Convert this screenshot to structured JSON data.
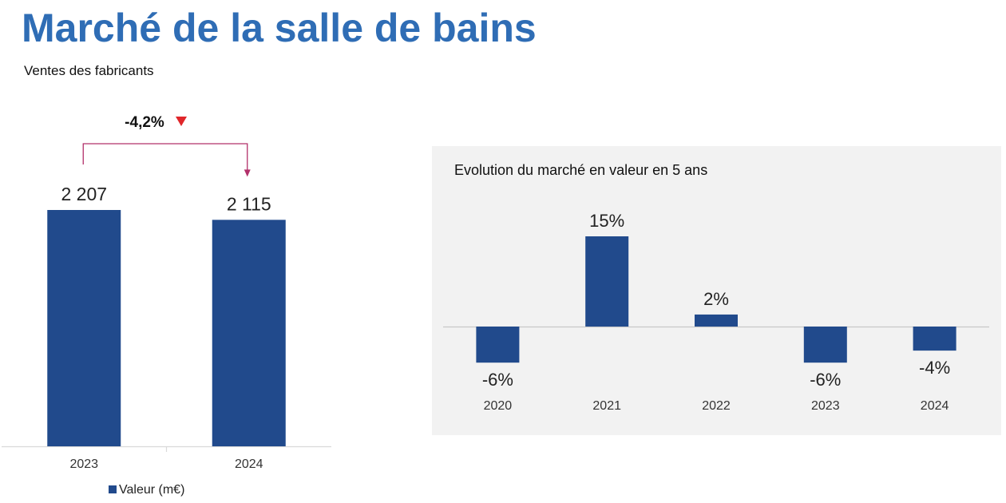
{
  "title": "Marché de la salle de bains",
  "subtitle": "Ventes des fabricants",
  "colors": {
    "title": "#2f6db5",
    "bar": "#214a8c",
    "arrow": "#b2306a",
    "down_marker": "#e0262a",
    "panel_bg": "#f2f2f2"
  },
  "chart_data": [
    {
      "type": "bar",
      "categories": [
        "2023",
        "2024"
      ],
      "series": [
        {
          "name": "Valeur (m€)",
          "values": [
            2207,
            2115
          ]
        }
      ],
      "data_labels": [
        "2 207",
        "2 115"
      ],
      "annotation": {
        "text": "-4,2%",
        "direction": "down",
        "from": "2023",
        "to": "2024"
      },
      "legend": "bottom",
      "ylim": [
        0,
        2207
      ]
    },
    {
      "type": "bar",
      "title": "Evolution du marché en valeur en 5 ans",
      "categories": [
        "2020",
        "2021",
        "2022",
        "2023",
        "2024"
      ],
      "values": [
        -6,
        15,
        2,
        -6,
        -4
      ],
      "data_labels": [
        "-6%",
        "15%",
        "2%",
        "-6%",
        "-4%"
      ],
      "ylim": [
        -6,
        15
      ]
    }
  ]
}
